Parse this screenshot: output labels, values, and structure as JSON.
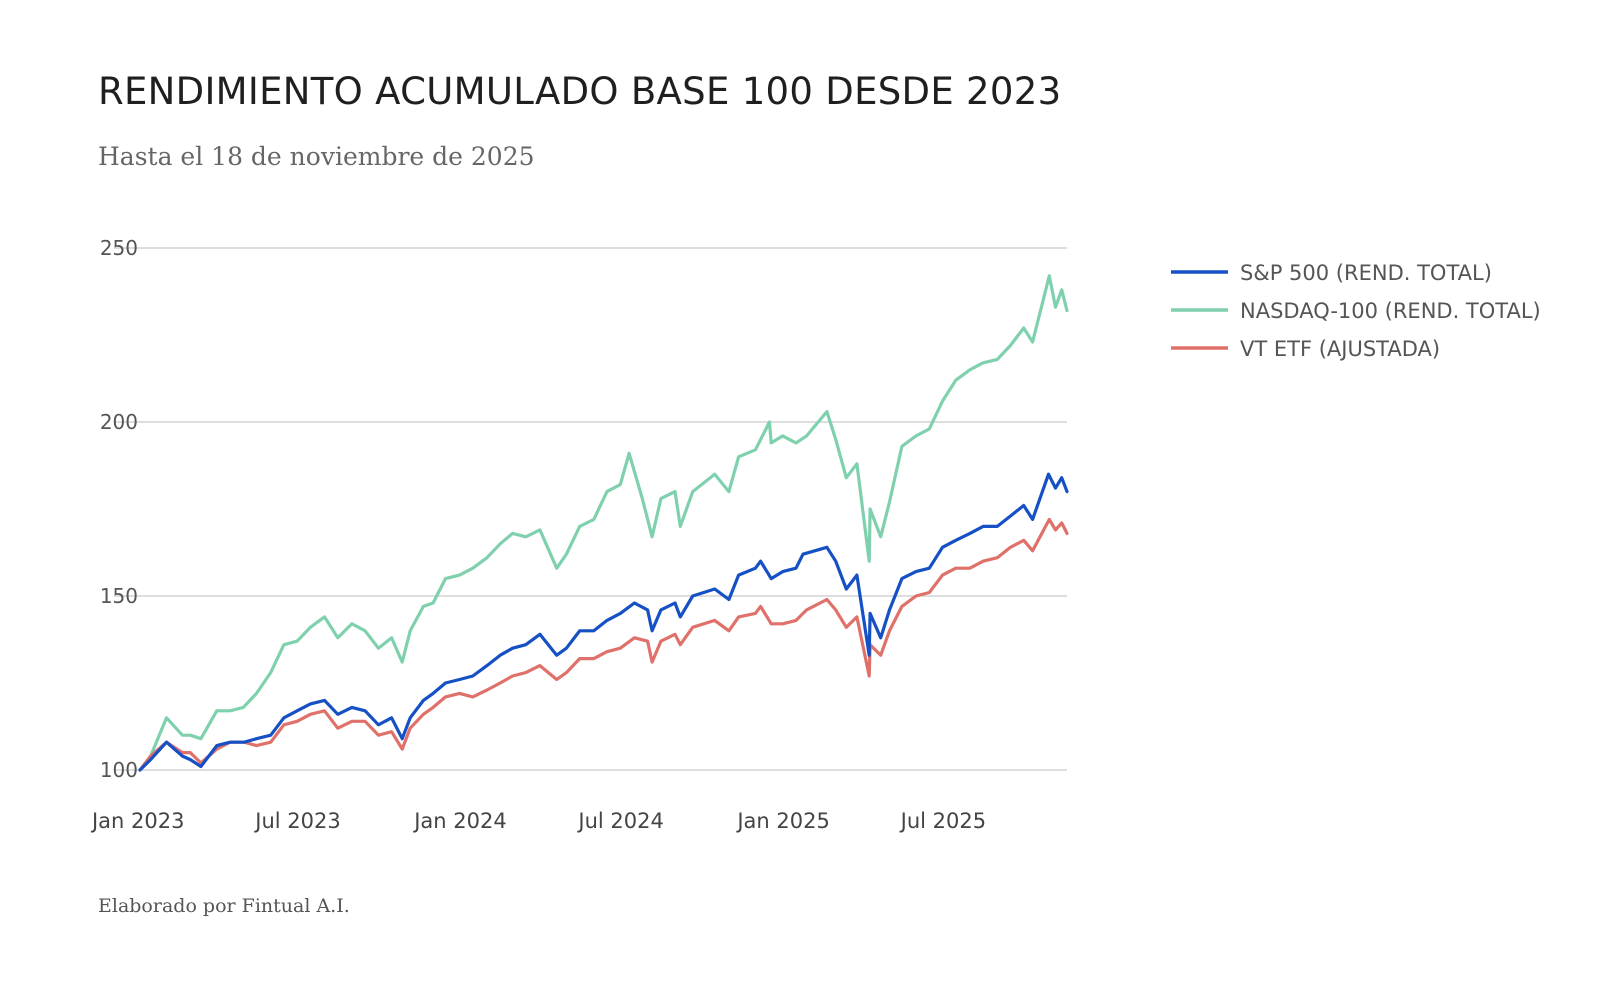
{
  "chart_data": {
    "type": "line",
    "title": "RENDIMIENTO ACUMULADO BASE 100 DESDE 2023",
    "subtitle": "Hasta el 18 de noviembre de 2025",
    "footer": "Elaborado por Fintual A.I.",
    "xlabel": "",
    "ylabel": "",
    "ylim": [
      100,
      250
    ],
    "yticks": [
      100,
      150,
      200,
      250
    ],
    "x_ticks": [
      {
        "date": "2023-01-01",
        "label": "Jan 2023"
      },
      {
        "date": "2023-07-01",
        "label": "Jul 2023"
      },
      {
        "date": "2024-01-01",
        "label": "Jan 2024"
      },
      {
        "date": "2024-07-01",
        "label": "Jul 2024"
      },
      {
        "date": "2025-01-01",
        "label": "Jan 2025"
      },
      {
        "date": "2025-07-01",
        "label": "Jul 2025"
      }
    ],
    "grid": "horizontal",
    "legend_position": "right",
    "series": [
      {
        "name": "S&P 500 (REND. TOTAL)",
        "color": "#1550c4",
        "points": [
          [
            "2023-01-03",
            100
          ],
          [
            "2023-01-15",
            103
          ],
          [
            "2023-02-02",
            108
          ],
          [
            "2023-02-20",
            104
          ],
          [
            "2023-03-01",
            103
          ],
          [
            "2023-03-13",
            101
          ],
          [
            "2023-03-31",
            107
          ],
          [
            "2023-04-15",
            108
          ],
          [
            "2023-05-01",
            108
          ],
          [
            "2023-05-15",
            109
          ],
          [
            "2023-05-31",
            110
          ],
          [
            "2023-06-15",
            115
          ],
          [
            "2023-06-30",
            117
          ],
          [
            "2023-07-15",
            119
          ],
          [
            "2023-07-31",
            120
          ],
          [
            "2023-08-15",
            116
          ],
          [
            "2023-08-31",
            118
          ],
          [
            "2023-09-15",
            117
          ],
          [
            "2023-09-30",
            113
          ],
          [
            "2023-10-15",
            115
          ],
          [
            "2023-10-27",
            109
          ],
          [
            "2023-11-05",
            115
          ],
          [
            "2023-11-20",
            120
          ],
          [
            "2023-12-01",
            122
          ],
          [
            "2023-12-15",
            125
          ],
          [
            "2023-12-31",
            126
          ],
          [
            "2024-01-15",
            127
          ],
          [
            "2024-01-31",
            130
          ],
          [
            "2024-02-15",
            133
          ],
          [
            "2024-02-29",
            135
          ],
          [
            "2024-03-15",
            136
          ],
          [
            "2024-03-31",
            139
          ],
          [
            "2024-04-19",
            133
          ],
          [
            "2024-04-30",
            135
          ],
          [
            "2024-05-15",
            140
          ],
          [
            "2024-05-31",
            140
          ],
          [
            "2024-06-15",
            143
          ],
          [
            "2024-06-30",
            145
          ],
          [
            "2024-07-16",
            148
          ],
          [
            "2024-07-31",
            146
          ],
          [
            "2024-08-05",
            140
          ],
          [
            "2024-08-15",
            146
          ],
          [
            "2024-08-31",
            148
          ],
          [
            "2024-09-06",
            144
          ],
          [
            "2024-09-20",
            150
          ],
          [
            "2024-10-15",
            152
          ],
          [
            "2024-10-31",
            149
          ],
          [
            "2024-11-11",
            156
          ],
          [
            "2024-11-30",
            158
          ],
          [
            "2024-12-06",
            160
          ],
          [
            "2024-12-18",
            155
          ],
          [
            "2024-12-31",
            157
          ],
          [
            "2025-01-15",
            158
          ],
          [
            "2025-01-23",
            162
          ],
          [
            "2025-02-19",
            164
          ],
          [
            "2025-03-01",
            160
          ],
          [
            "2025-03-13",
            152
          ],
          [
            "2025-03-25",
            156
          ],
          [
            "2025-04-08",
            133
          ],
          [
            "2025-04-09",
            145
          ],
          [
            "2025-04-21",
            138
          ],
          [
            "2025-05-01",
            146
          ],
          [
            "2025-05-15",
            155
          ],
          [
            "2025-05-31",
            157
          ],
          [
            "2025-06-15",
            158
          ],
          [
            "2025-06-30",
            164
          ],
          [
            "2025-07-15",
            166
          ],
          [
            "2025-07-31",
            168
          ],
          [
            "2025-08-15",
            170
          ],
          [
            "2025-08-31",
            170
          ],
          [
            "2025-09-15",
            173
          ],
          [
            "2025-09-30",
            176
          ],
          [
            "2025-10-10",
            172
          ],
          [
            "2025-10-28",
            185
          ],
          [
            "2025-11-05",
            181
          ],
          [
            "2025-11-12",
            184
          ],
          [
            "2025-11-18",
            180
          ]
        ]
      },
      {
        "name": "NASDAQ-100 (REND. TOTAL)",
        "color": "#7fd1ad",
        "points": [
          [
            "2023-01-03",
            100
          ],
          [
            "2023-01-15",
            104
          ],
          [
            "2023-02-02",
            115
          ],
          [
            "2023-02-20",
            110
          ],
          [
            "2023-03-01",
            110
          ],
          [
            "2023-03-13",
            109
          ],
          [
            "2023-03-31",
            117
          ],
          [
            "2023-04-15",
            117
          ],
          [
            "2023-04-30",
            118
          ],
          [
            "2023-05-15",
            122
          ],
          [
            "2023-05-31",
            128
          ],
          [
            "2023-06-15",
            136
          ],
          [
            "2023-06-30",
            137
          ],
          [
            "2023-07-15",
            141
          ],
          [
            "2023-07-31",
            144
          ],
          [
            "2023-08-15",
            138
          ],
          [
            "2023-08-31",
            142
          ],
          [
            "2023-09-15",
            140
          ],
          [
            "2023-09-30",
            135
          ],
          [
            "2023-10-15",
            138
          ],
          [
            "2023-10-27",
            131
          ],
          [
            "2023-11-05",
            140
          ],
          [
            "2023-11-20",
            147
          ],
          [
            "2023-12-01",
            148
          ],
          [
            "2023-12-15",
            155
          ],
          [
            "2023-12-31",
            156
          ],
          [
            "2024-01-15",
            158
          ],
          [
            "2024-01-31",
            161
          ],
          [
            "2024-02-15",
            165
          ],
          [
            "2024-02-29",
            168
          ],
          [
            "2024-03-15",
            167
          ],
          [
            "2024-03-31",
            169
          ],
          [
            "2024-04-19",
            158
          ],
          [
            "2024-04-30",
            162
          ],
          [
            "2024-05-15",
            170
          ],
          [
            "2024-05-31",
            172
          ],
          [
            "2024-06-15",
            180
          ],
          [
            "2024-06-30",
            182
          ],
          [
            "2024-07-10",
            191
          ],
          [
            "2024-07-25",
            178
          ],
          [
            "2024-08-05",
            167
          ],
          [
            "2024-08-15",
            178
          ],
          [
            "2024-08-31",
            180
          ],
          [
            "2024-09-06",
            170
          ],
          [
            "2024-09-20",
            180
          ],
          [
            "2024-10-15",
            185
          ],
          [
            "2024-10-31",
            180
          ],
          [
            "2024-11-11",
            190
          ],
          [
            "2024-11-30",
            192
          ],
          [
            "2024-12-16",
            200
          ],
          [
            "2024-12-18",
            194
          ],
          [
            "2024-12-31",
            196
          ],
          [
            "2025-01-15",
            194
          ],
          [
            "2025-01-27",
            196
          ],
          [
            "2025-02-19",
            203
          ],
          [
            "2025-03-01",
            195
          ],
          [
            "2025-03-13",
            184
          ],
          [
            "2025-03-25",
            188
          ],
          [
            "2025-04-08",
            160
          ],
          [
            "2025-04-09",
            175
          ],
          [
            "2025-04-21",
            167
          ],
          [
            "2025-05-01",
            177
          ],
          [
            "2025-05-15",
            193
          ],
          [
            "2025-05-31",
            196
          ],
          [
            "2025-06-15",
            198
          ],
          [
            "2025-06-30",
            206
          ],
          [
            "2025-07-15",
            212
          ],
          [
            "2025-07-31",
            215
          ],
          [
            "2025-08-15",
            217
          ],
          [
            "2025-08-31",
            218
          ],
          [
            "2025-09-15",
            222
          ],
          [
            "2025-09-30",
            227
          ],
          [
            "2025-10-10",
            223
          ],
          [
            "2025-10-29",
            242
          ],
          [
            "2025-11-05",
            233
          ],
          [
            "2025-11-12",
            238
          ],
          [
            "2025-11-18",
            232
          ]
        ]
      },
      {
        "name": "VT ETF (AJUSTADA)",
        "color": "#e0716a",
        "points": [
          [
            "2023-01-03",
            100
          ],
          [
            "2023-01-15",
            104
          ],
          [
            "2023-02-02",
            108
          ],
          [
            "2023-02-20",
            105
          ],
          [
            "2023-03-01",
            105
          ],
          [
            "2023-03-13",
            102
          ],
          [
            "2023-03-31",
            106
          ],
          [
            "2023-04-15",
            108
          ],
          [
            "2023-05-01",
            108
          ],
          [
            "2023-05-15",
            107
          ],
          [
            "2023-05-31",
            108
          ],
          [
            "2023-06-15",
            113
          ],
          [
            "2023-06-30",
            114
          ],
          [
            "2023-07-15",
            116
          ],
          [
            "2023-07-31",
            117
          ],
          [
            "2023-08-15",
            112
          ],
          [
            "2023-08-31",
            114
          ],
          [
            "2023-09-15",
            114
          ],
          [
            "2023-09-30",
            110
          ],
          [
            "2023-10-15",
            111
          ],
          [
            "2023-10-27",
            106
          ],
          [
            "2023-11-05",
            112
          ],
          [
            "2023-11-20",
            116
          ],
          [
            "2023-12-01",
            118
          ],
          [
            "2023-12-15",
            121
          ],
          [
            "2023-12-31",
            122
          ],
          [
            "2024-01-15",
            121
          ],
          [
            "2024-01-31",
            123
          ],
          [
            "2024-02-15",
            125
          ],
          [
            "2024-02-29",
            127
          ],
          [
            "2024-03-15",
            128
          ],
          [
            "2024-03-31",
            130
          ],
          [
            "2024-04-19",
            126
          ],
          [
            "2024-04-30",
            128
          ],
          [
            "2024-05-15",
            132
          ],
          [
            "2024-05-31",
            132
          ],
          [
            "2024-06-15",
            134
          ],
          [
            "2024-06-30",
            135
          ],
          [
            "2024-07-16",
            138
          ],
          [
            "2024-07-31",
            137
          ],
          [
            "2024-08-05",
            131
          ],
          [
            "2024-08-15",
            137
          ],
          [
            "2024-08-31",
            139
          ],
          [
            "2024-09-06",
            136
          ],
          [
            "2024-09-20",
            141
          ],
          [
            "2024-10-15",
            143
          ],
          [
            "2024-10-31",
            140
          ],
          [
            "2024-11-11",
            144
          ],
          [
            "2024-11-30",
            145
          ],
          [
            "2024-12-06",
            147
          ],
          [
            "2024-12-18",
            142
          ],
          [
            "2024-12-31",
            142
          ],
          [
            "2025-01-15",
            143
          ],
          [
            "2025-01-27",
            146
          ],
          [
            "2025-02-19",
            149
          ],
          [
            "2025-03-01",
            146
          ],
          [
            "2025-03-13",
            141
          ],
          [
            "2025-03-25",
            144
          ],
          [
            "2025-04-08",
            127
          ],
          [
            "2025-04-09",
            136
          ],
          [
            "2025-04-21",
            133
          ],
          [
            "2025-05-01",
            140
          ],
          [
            "2025-05-15",
            147
          ],
          [
            "2025-05-31",
            150
          ],
          [
            "2025-06-15",
            151
          ],
          [
            "2025-06-30",
            156
          ],
          [
            "2025-07-15",
            158
          ],
          [
            "2025-07-31",
            158
          ],
          [
            "2025-08-15",
            160
          ],
          [
            "2025-08-31",
            161
          ],
          [
            "2025-09-15",
            164
          ],
          [
            "2025-09-30",
            166
          ],
          [
            "2025-10-10",
            163
          ],
          [
            "2025-10-29",
            172
          ],
          [
            "2025-11-05",
            169
          ],
          [
            "2025-11-12",
            171
          ],
          [
            "2025-11-18",
            168
          ]
        ]
      }
    ]
  }
}
